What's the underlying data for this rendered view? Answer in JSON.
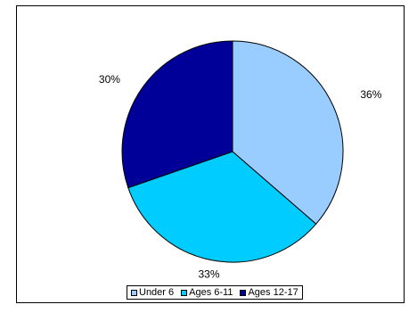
{
  "chart_data": {
    "type": "pie",
    "title": "",
    "legend_position": "bottom",
    "slices": [
      {
        "name": "Under 6",
        "value": 36,
        "label": "36%",
        "color": "#99ccff"
      },
      {
        "name": "Ages 6-11",
        "value": 33,
        "label": "33%",
        "color": "#00ccff"
      },
      {
        "name": "Ages 12-17",
        "value": 30,
        "label": "30%",
        "color": "#000099"
      }
    ],
    "legend": [
      {
        "label": "Under 6",
        "color": "#99ccff"
      },
      {
        "label": "Ages 6-11",
        "color": "#00ccff"
      },
      {
        "label": "Ages 12-17",
        "color": "#000099"
      }
    ]
  }
}
